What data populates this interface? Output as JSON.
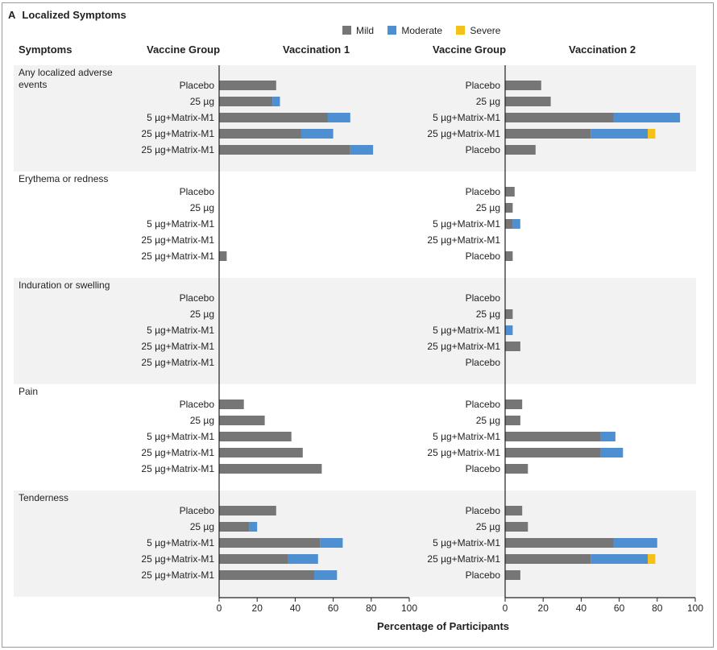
{
  "panel": {
    "letter": "A",
    "title": "Localized Symptoms"
  },
  "headers": {
    "symptoms": "Symptoms",
    "group_left": "Vaccine Group",
    "vacc1": "Vaccination 1",
    "group_right": "Vaccine Group",
    "vacc2": "Vaccination 2"
  },
  "legend": [
    {
      "name": "Mild",
      "color": "#767676"
    },
    {
      "name": "Moderate",
      "color": "#4e8fd1"
    },
    {
      "name": "Severe",
      "color": "#f2c21a"
    }
  ],
  "chart_data": {
    "type": "bar",
    "orientation": "horizontal",
    "stacked": true,
    "xlabel": "Percentage of Participants",
    "xlim": [
      0,
      100
    ],
    "xticks": [
      0,
      20,
      40,
      60,
      80,
      100
    ],
    "series_names": [
      "Mild",
      "Moderate",
      "Severe"
    ],
    "groups_left": [
      "Placebo",
      "25 µg",
      "5 µg+Matrix-M1",
      "25 µg+Matrix-M1",
      "25 µg+Matrix-M1"
    ],
    "groups_right": [
      "Placebo",
      "25 µg",
      "5 µg+Matrix-M1",
      "25 µg+Matrix-M1",
      "Placebo"
    ],
    "panels": [
      {
        "title": "Vaccination 1",
        "symptoms": [
          {
            "name": "Any localized adverse events",
            "bars": [
              [
                30,
                0,
                0
              ],
              [
                28,
                4,
                0
              ],
              [
                57,
                12,
                0
              ],
              [
                43,
                17,
                0
              ],
              [
                69,
                12,
                0
              ]
            ]
          },
          {
            "name": "Erythema or redness",
            "bars": [
              [
                0,
                0,
                0
              ],
              [
                0,
                0,
                0
              ],
              [
                0,
                0,
                0
              ],
              [
                0,
                0,
                0
              ],
              [
                4,
                0,
                0
              ]
            ]
          },
          {
            "name": "Induration or swelling",
            "bars": [
              [
                0,
                0,
                0
              ],
              [
                0,
                0,
                0
              ],
              [
                0,
                0,
                0
              ],
              [
                0,
                0,
                0
              ],
              [
                0,
                0,
                0
              ]
            ]
          },
          {
            "name": "Pain",
            "bars": [
              [
                13,
                0,
                0
              ],
              [
                24,
                0,
                0
              ],
              [
                38,
                0,
                0
              ],
              [
                44,
                0,
                0
              ],
              [
                54,
                0,
                0
              ]
            ]
          },
          {
            "name": "Tenderness",
            "bars": [
              [
                30,
                0,
                0
              ],
              [
                16,
                4,
                0
              ],
              [
                53,
                12,
                0
              ],
              [
                36,
                16,
                0
              ],
              [
                50,
                12,
                0
              ]
            ]
          }
        ]
      },
      {
        "title": "Vaccination 2",
        "symptoms": [
          {
            "name": "Any localized adverse events",
            "bars": [
              [
                19,
                0,
                0
              ],
              [
                24,
                0,
                0
              ],
              [
                57,
                35,
                0
              ],
              [
                45,
                30,
                4
              ],
              [
                16,
                0,
                0
              ]
            ]
          },
          {
            "name": "Erythema or redness",
            "bars": [
              [
                5,
                0,
                0
              ],
              [
                4,
                0,
                0
              ],
              [
                4,
                4,
                0
              ],
              [
                0,
                0,
                0
              ],
              [
                4,
                0,
                0
              ]
            ]
          },
          {
            "name": "Induration or swelling",
            "bars": [
              [
                0,
                0,
                0
              ],
              [
                4,
                0,
                0
              ],
              [
                0,
                4,
                0
              ],
              [
                8,
                0,
                0
              ],
              [
                0,
                0,
                0
              ]
            ]
          },
          {
            "name": "Pain",
            "bars": [
              [
                9,
                0,
                0
              ],
              [
                8,
                0,
                0
              ],
              [
                50,
                8,
                0
              ],
              [
                50,
                12,
                0
              ],
              [
                12,
                0,
                0
              ]
            ]
          },
          {
            "name": "Tenderness",
            "bars": [
              [
                9,
                0,
                0
              ],
              [
                12,
                0,
                0
              ],
              [
                57,
                23,
                0
              ],
              [
                45,
                30,
                4
              ],
              [
                8,
                0,
                0
              ]
            ]
          }
        ]
      }
    ]
  }
}
